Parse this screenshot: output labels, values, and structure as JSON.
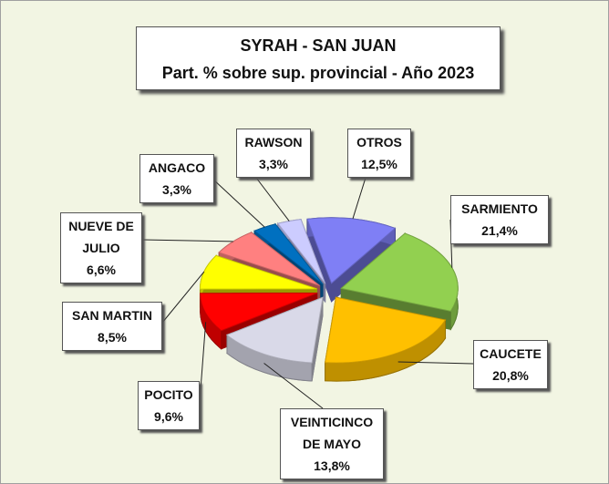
{
  "chart_data": {
    "type": "pie",
    "title": "SYRAH - SAN JUAN",
    "subtitle": "Part. % sobre sup. provincial - Año 2023",
    "categories": [
      "OTROS",
      "SARMIENTO",
      "CAUCETE",
      "VEINTICINCO DE MAYO",
      "POCITO",
      "SAN MARTIN",
      "NUEVE DE JULIO",
      "ANGACO",
      "RAWSON"
    ],
    "values": [
      12.5,
      21.4,
      20.8,
      13.8,
      9.6,
      8.5,
      6.6,
      3.3,
      3.3
    ],
    "value_labels": [
      "12,5%",
      "21,4%",
      "20,8%",
      "13,8%",
      "9,6%",
      "8,5%",
      "6,6%",
      "3,3%",
      "3,3%"
    ],
    "colors": [
      "#7f7ff5",
      "#92d050",
      "#ffc000",
      "#d9d9e8",
      "#ff0000",
      "#ffff00",
      "#ff8080",
      "#0070c0",
      "#ccccff"
    ]
  }
}
